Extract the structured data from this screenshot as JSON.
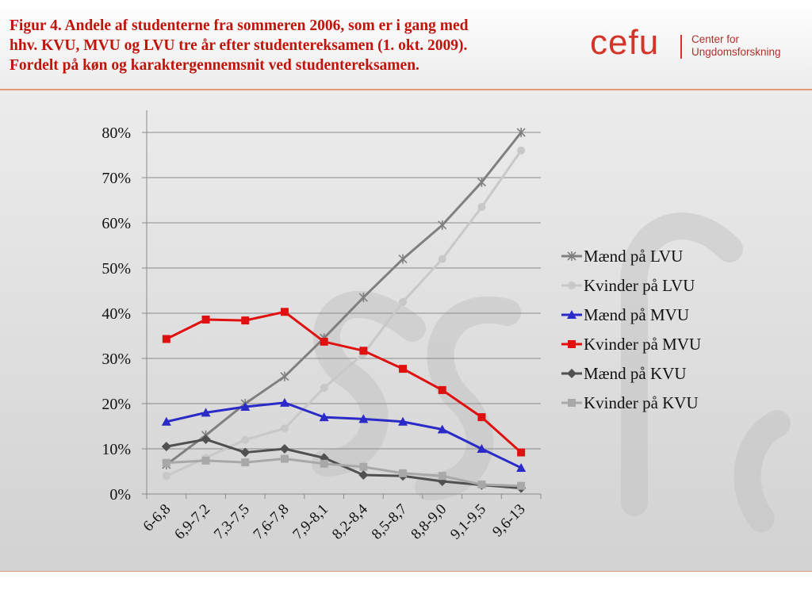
{
  "header": {
    "title_lines": [
      "Figur 4. Andele af studenterne fra sommeren 2006, som er i gang med",
      "hhv. KVU, MVU og LVU tre år efter studentereksamen (1. okt. 2009).",
      "Fordelt på køn og karaktergennemsnit ved studentereksamen."
    ]
  },
  "logo": {
    "word": "cefu",
    "sub_lines": [
      "Center for",
      "Ungdomsforskning"
    ]
  },
  "colors": {
    "title": "#c0140a",
    "logo": "#d4352a",
    "rule": "#e39a72"
  },
  "chart_data": {
    "type": "line",
    "categories": [
      "6-6,8",
      "6,9-7,2",
      "7,3-7,5",
      "7,6-7,8",
      "7,9-8,1",
      "8,2-8,4",
      "8,5-8,7",
      "8,8-9,0",
      "9,1-9,5",
      "9,6-13"
    ],
    "ylim": [
      0,
      80
    ],
    "yticks": [
      "0%",
      "10%",
      "20%",
      "30%",
      "40%",
      "50%",
      "60%",
      "70%",
      "80%"
    ],
    "grid": true,
    "legend_position": "right",
    "series": [
      {
        "name": "Mænd på LVU",
        "values": [
          6.5,
          13,
          20,
          26,
          34.5,
          43.5,
          52,
          59.5,
          69,
          80
        ],
        "color": "#808080",
        "marker": "star"
      },
      {
        "name": "Kvinder på LVU",
        "values": [
          4,
          8,
          12,
          14.5,
          23.5,
          31,
          42.5,
          52,
          63.5,
          76
        ],
        "color": "#c8c8c8",
        "marker": "circle"
      },
      {
        "name": "Mænd på MVU",
        "values": [
          16,
          18,
          19.3,
          20.2,
          17,
          16.6,
          16,
          14.3,
          10,
          5.8
        ],
        "color": "#2a2ac8",
        "marker": "triangle"
      },
      {
        "name": "Kvinder på MVU",
        "values": [
          34.3,
          38.6,
          38.4,
          40.3,
          33.7,
          31.7,
          27.7,
          23,
          17,
          9.2
        ],
        "color": "#e01010",
        "marker": "square"
      },
      {
        "name": "Mænd på KVU",
        "values": [
          10.5,
          12.1,
          9.2,
          10,
          8,
          4.2,
          4,
          2.8,
          2,
          1.3
        ],
        "color": "#505050",
        "marker": "diamond"
      },
      {
        "name": "Kvinder på KVU",
        "values": [
          6.9,
          7.4,
          7,
          7.8,
          6.7,
          6,
          4.6,
          4,
          2.1,
          1.8
        ],
        "color": "#a8a8a8",
        "marker": "square"
      }
    ]
  }
}
